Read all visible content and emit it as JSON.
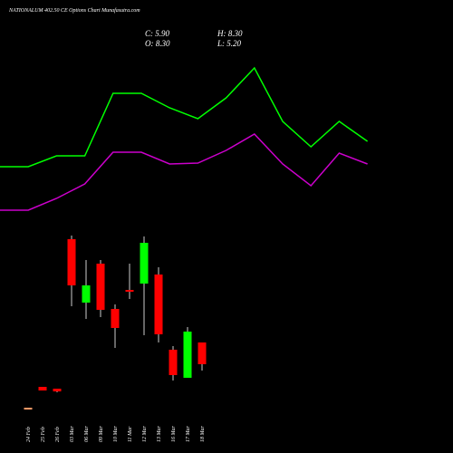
{
  "chart_data": [
    {
      "type": "line",
      "series": [
        {
          "color": "#00ff00",
          "values": [
            11.6,
            11.6,
            12.8,
            12.8,
            19.7,
            19.7,
            18.1,
            16.9,
            19.2,
            22.5,
            16.6,
            13.8,
            16.6,
            14.4
          ]
        },
        {
          "color": "#cc00cc",
          "values": [
            6.8,
            6.8,
            8.1,
            9.7,
            13.2,
            13.2,
            11.9,
            12.0,
            13.4,
            15.2,
            11.9,
            9.5,
            13.1,
            11.9
          ]
        }
      ],
      "ylim": [
        0,
        30
      ]
    },
    {
      "type": "candlestick",
      "title": "NATIONALUM 402.50 CE Options Chart Munafasutra.com",
      "ohlc_text": {
        "close": "C: 5.90",
        "high": "H: 8.30",
        "open": "O: 8.30",
        "low": "L: 5.20"
      },
      "categories": [
        "24 Feb",
        "25 Feb",
        "26 Feb",
        "03 Mar",
        "06 Mar",
        "09 Mar",
        "10 Mar",
        "11 Mar",
        "12 Mar",
        "13 Mar",
        "16 Mar",
        "17 Mar",
        "18 Mar"
      ],
      "open": [
        1.1,
        3.4,
        3.2,
        19.7,
        12.7,
        17.0,
        12.0,
        14.1,
        14.8,
        15.8,
        7.5,
        4.4,
        8.3
      ],
      "high": [
        1.1,
        3.4,
        3.2,
        20.1,
        17.4,
        17.4,
        12.5,
        17.0,
        20.0,
        16.6,
        7.9,
        10.0,
        8.3
      ],
      "low": [
        1.1,
        3.0,
        2.8,
        12.3,
        10.9,
        11.1,
        7.7,
        13.1,
        9.1,
        8.3,
        4.1,
        4.4,
        5.2
      ],
      "close": [
        1.1,
        3.0,
        2.9,
        14.6,
        14.6,
        11.9,
        9.9,
        14.0,
        19.3,
        9.2,
        4.7,
        9.5,
        5.9
      ],
      "up_color": "#00ff00",
      "down_color": "#ff0000",
      "flat_color": "#ff9966",
      "ylim": [
        -3,
        25
      ]
    }
  ]
}
